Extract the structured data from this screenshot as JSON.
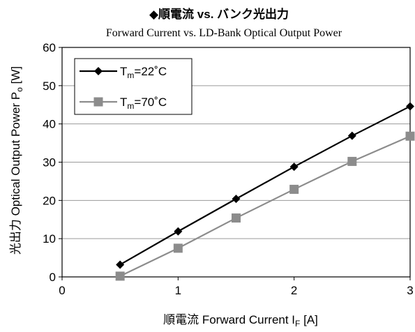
{
  "chart_data": {
    "type": "line",
    "title": "◆順電流 vs. バンク光出力",
    "subtitle": "Forward Current vs. LD-Bank Optical Output Power",
    "xlabel": {
      "prefix": "順電流 Forward Current I",
      "sub": "F",
      "suffix": " [A]"
    },
    "ylabel": {
      "prefix": "光出力 Optical Output Power P",
      "sub": "o",
      "suffix": " [W]"
    },
    "xlim": [
      0,
      3
    ],
    "ylim": [
      0,
      60
    ],
    "xticks": [
      0,
      1,
      2,
      3
    ],
    "yticks": [
      0,
      10,
      20,
      30,
      40,
      50,
      60
    ],
    "x_tick_labels": [
      "0",
      "1",
      "2",
      "3"
    ],
    "y_tick_labels": [
      "0",
      "10",
      "20",
      "30",
      "40",
      "50",
      "60"
    ],
    "grid": {
      "y": true,
      "x": false
    },
    "legend": "top-left",
    "series": [
      {
        "name": "Tm=22°C",
        "legend_label": {
          "base": "T",
          "sub": "m",
          "rest": "=22˚C"
        },
        "marker": "diamond",
        "color": "#000000",
        "x": [
          0.5,
          1.0,
          1.5,
          2.0,
          2.5,
          3.0
        ],
        "y": [
          3.2,
          11.9,
          20.4,
          28.8,
          36.9,
          44.6
        ]
      },
      {
        "name": "Tm=70°C",
        "legend_label": {
          "base": "T",
          "sub": "m",
          "rest": "=70˚C"
        },
        "marker": "square",
        "color": "#8c8c8c",
        "x": [
          0.5,
          1.0,
          1.5,
          2.0,
          2.5,
          3.0
        ],
        "y": [
          0.2,
          7.5,
          15.4,
          22.9,
          30.2,
          36.8
        ]
      }
    ]
  }
}
